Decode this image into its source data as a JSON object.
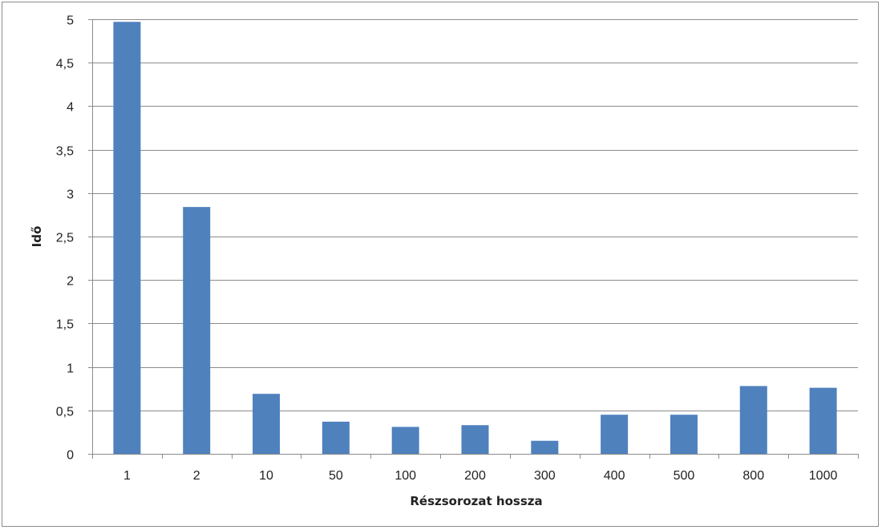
{
  "chart_data": {
    "type": "bar",
    "title": "",
    "xlabel": "Részsorozat hossza",
    "ylabel": "Idő",
    "categories": [
      "1",
      "2",
      "10",
      "50",
      "100",
      "200",
      "300",
      "400",
      "500",
      "800",
      "1000"
    ],
    "values": [
      4.97,
      2.84,
      0.69,
      0.37,
      0.31,
      0.33,
      0.15,
      0.45,
      0.45,
      0.78,
      0.76
    ],
    "ylim": [
      0,
      5
    ],
    "yticks": [
      "0",
      "0,5",
      "1",
      "1,5",
      "2",
      "2,5",
      "3",
      "3,5",
      "4",
      "4,5",
      "5"
    ],
    "ytick_values": [
      0,
      0.5,
      1,
      1.5,
      2,
      2.5,
      3,
      3.5,
      4,
      4.5,
      5
    ],
    "grid": true,
    "legend": "none",
    "colors": {
      "bar": "#4f81bd",
      "grid": "#8c8c8c",
      "axis": "#8c8c8c"
    }
  }
}
